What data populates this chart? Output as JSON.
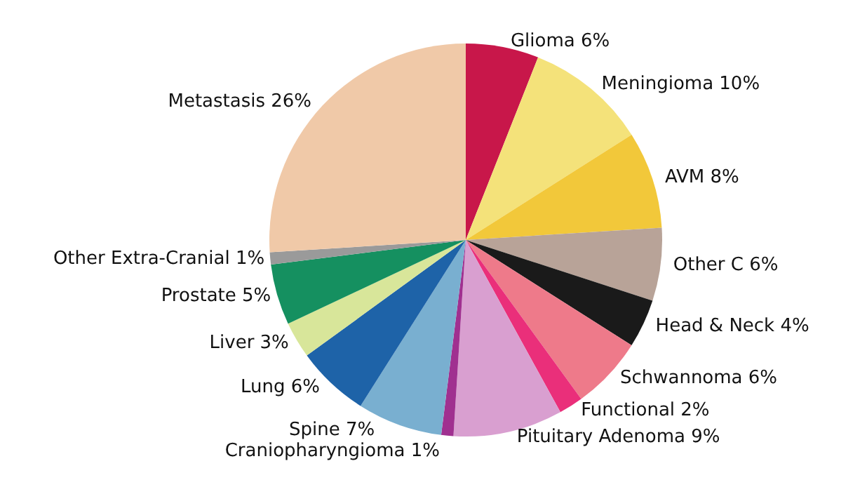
{
  "chart_data": {
    "type": "pie",
    "categories": [
      "Glioma",
      "Meningioma",
      "AVM",
      "Other C",
      "Head & Neck",
      "Schwannoma",
      "Functional",
      "Pituitary Adenoma",
      "Craniopharyngioma",
      "Spine",
      "Lung",
      "Liver",
      "Prostate",
      "Other Extra-Cranial",
      "Metastasis"
    ],
    "values": [
      6,
      10,
      8,
      6,
      4,
      6,
      2,
      9,
      1,
      7,
      6,
      3,
      5,
      1,
      26
    ],
    "colors": [
      "#c8174a",
      "#f4e27a",
      "#f2c83a",
      "#b8a398",
      "#1a1a1a",
      "#ee7a8a",
      "#ea2f7a",
      "#d99fd0",
      "#a03090",
      "#79afd0",
      "#1e63a8",
      "#d8e69a",
      "#159060",
      "#9a9a9a",
      "#f0c9a8"
    ],
    "value_labels": [
      "6%",
      "10%",
      "8%",
      "6%",
      "4%",
      "6%",
      "2%",
      "9%",
      "1%",
      "7%",
      "6%",
      "3%",
      "5%",
      "1%",
      "26%"
    ],
    "legend": false
  }
}
